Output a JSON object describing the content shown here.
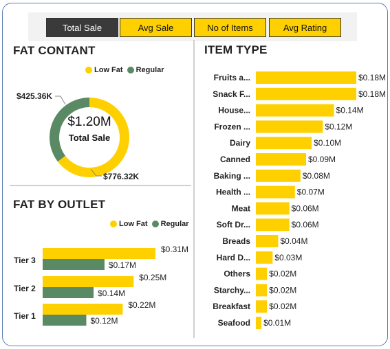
{
  "tabs": [
    {
      "label": "Total Sale",
      "active": true
    },
    {
      "label": "Avg Sale",
      "active": false
    },
    {
      "label": "No of Items",
      "active": false
    },
    {
      "label": "Avg Rating",
      "active": false
    }
  ],
  "colors": {
    "low_fat": "#ffd000",
    "regular": "#5a8a64",
    "active_tab": "#3a3a3a",
    "frame_border": "#5a7fb0"
  },
  "fat_content": {
    "title": "FAT CONTANT",
    "legend": [
      "Low Fat",
      "Regular"
    ],
    "center_value": "$1.20M",
    "center_caption": "Total Sale",
    "regular_label": "$425.36K",
    "low_fat_label": "$776.32K"
  },
  "fat_by_outlet": {
    "title": "FAT BY OUTLET",
    "legend": [
      "Low Fat",
      "Regular"
    ]
  },
  "item_type": {
    "title": "ITEM TYPE"
  },
  "chart_data": [
    {
      "type": "pie",
      "title": "FAT CONTANT",
      "categories": [
        "Low Fat",
        "Regular"
      ],
      "values": [
        776.32,
        425.36
      ],
      "value_labels": [
        "$776.32K",
        "$425.36K"
      ],
      "unit": "K",
      "donut": true,
      "center_value": "$1.20M",
      "center_caption": "Total Sale",
      "legend_position": "top"
    },
    {
      "type": "bar",
      "orientation": "horizontal",
      "title": "FAT BY OUTLET",
      "categories": [
        "Tier 3",
        "Tier 2",
        "Tier 1"
      ],
      "series": [
        {
          "name": "Low Fat",
          "values": [
            0.31,
            0.25,
            0.22
          ],
          "labels": [
            "$0.31M",
            "$0.25M",
            "$0.22M"
          ]
        },
        {
          "name": "Regular",
          "values": [
            0.17,
            0.14,
            0.12
          ],
          "labels": [
            "$0.17M",
            "$0.14M",
            "$0.12M"
          ]
        }
      ],
      "legend_position": "top-right",
      "grid": false
    },
    {
      "type": "bar",
      "orientation": "horizontal",
      "title": "ITEM TYPE",
      "categories": [
        "Fruits a...",
        "Snack F...",
        "House...",
        "Frozen ...",
        "Dairy",
        "Canned",
        "Baking ...",
        "Health ...",
        "Meat",
        "Soft Dr...",
        "Breads",
        "Hard D...",
        "Others",
        "Starchy...",
        "Breakfast",
        "Seafood"
      ],
      "values": [
        0.18,
        0.18,
        0.14,
        0.12,
        0.1,
        0.09,
        0.08,
        0.07,
        0.06,
        0.06,
        0.04,
        0.03,
        0.02,
        0.02,
        0.02,
        0.01
      ],
      "value_labels": [
        "$0.18M",
        "$0.18M",
        "$0.14M",
        "$0.12M",
        "$0.10M",
        "$0.09M",
        "$0.08M",
        "$0.07M",
        "$0.06M",
        "$0.06M",
        "$0.04M",
        "$0.03M",
        "$0.02M",
        "$0.02M",
        "$0.02M",
        "$0.01M"
      ],
      "grid": false
    }
  ]
}
